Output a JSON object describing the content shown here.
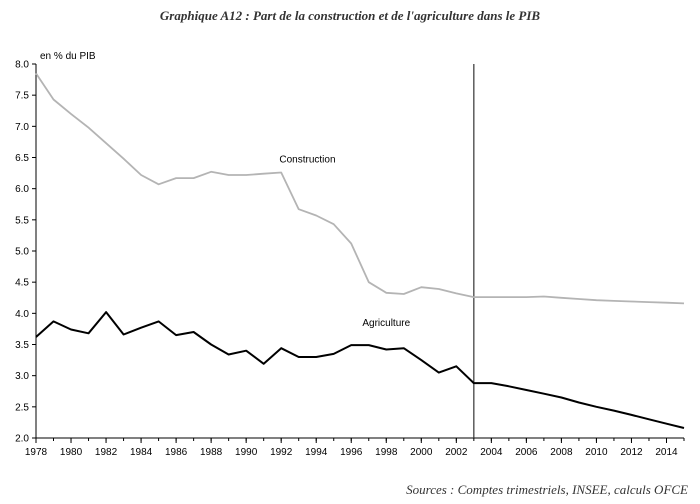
{
  "chart_data": {
    "type": "line",
    "title": "Graphique A12 : Part de la construction et de l'agriculture dans le PIB",
    "ylabel": "en % du PIB",
    "source": "Sources : Comptes trimestriels, INSEE, calculs OFCE",
    "ylim": [
      2.0,
      8.0
    ],
    "yticks": [
      "2.0",
      "2.5",
      "3.0",
      "3.5",
      "4.0",
      "4.5",
      "5.0",
      "5.5",
      "6.0",
      "6.5",
      "7.0",
      "7.5",
      "8.0"
    ],
    "xlim": [
      1978,
      2015
    ],
    "xticks": [
      "1978",
      "1980",
      "1982",
      "1984",
      "1986",
      "1988",
      "1990",
      "1992",
      "1994",
      "1996",
      "1998",
      "2000",
      "2002",
      "2004",
      "2006",
      "2008",
      "2010",
      "2012",
      "2014"
    ],
    "vline_x": 2003,
    "x": [
      1978,
      1979,
      1980,
      1981,
      1982,
      1983,
      1984,
      1985,
      1986,
      1987,
      1988,
      1989,
      1990,
      1991,
      1992,
      1993,
      1994,
      1995,
      1996,
      1997,
      1998,
      1999,
      2000,
      2001,
      2002,
      2003,
      2004,
      2005,
      2006,
      2007,
      2008,
      2009,
      2010,
      2011,
      2012,
      2013,
      2014,
      2015
    ],
    "series": [
      {
        "name": "Construction",
        "color": "#b4b4b4",
        "values": [
          7.85,
          7.43,
          7.2,
          6.98,
          6.73,
          6.48,
          6.22,
          6.07,
          6.17,
          6.17,
          6.27,
          6.22,
          6.22,
          6.24,
          6.26,
          5.67,
          5.57,
          5.43,
          5.12,
          4.5,
          4.33,
          4.31,
          4.42,
          4.39,
          4.32,
          4.26,
          4.26,
          4.26,
          4.26,
          4.27,
          4.25,
          4.23,
          4.21,
          4.2,
          4.19,
          4.18,
          4.17,
          4.16
        ]
      },
      {
        "name": "Agriculture",
        "color": "#000000",
        "values": [
          3.62,
          3.87,
          3.74,
          3.68,
          4.02,
          3.66,
          3.77,
          3.87,
          3.65,
          3.7,
          3.5,
          3.34,
          3.4,
          3.19,
          3.44,
          3.3,
          3.3,
          3.35,
          3.49,
          3.49,
          3.42,
          3.44,
          3.25,
          3.05,
          3.15,
          2.88,
          2.88,
          2.83,
          2.77,
          2.71,
          2.65,
          2.57,
          2.5,
          2.44,
          2.37,
          2.3,
          2.23,
          2.16
        ]
      }
    ]
  }
}
